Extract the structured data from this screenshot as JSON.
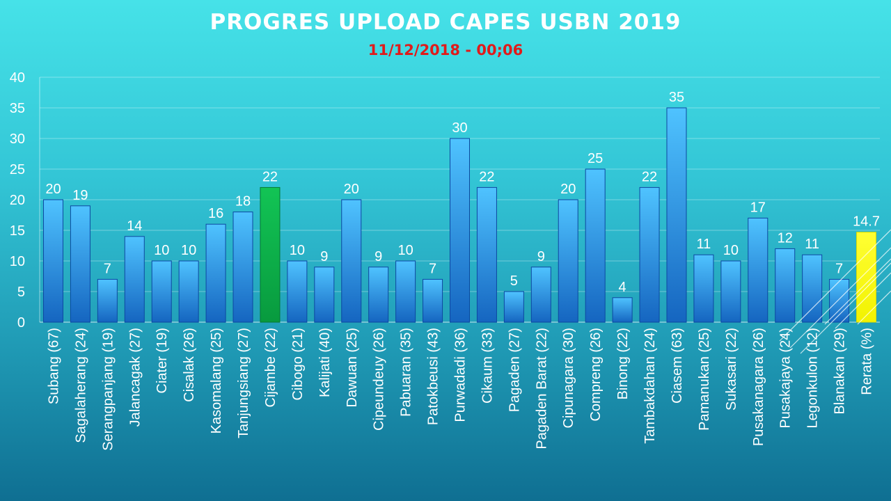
{
  "title": "PROGRES UPLOAD CAPES USBN 2019",
  "subtitle": "11/12/2018 - 00;06",
  "colors": {
    "default_bar": "#2b8fe6",
    "highlight_bar": "#0db14b",
    "average_bar": "#ffff00",
    "text": "#ffffff",
    "subtitle": "#e01b1b"
  },
  "chart_data": {
    "type": "bar",
    "title": "PROGRES UPLOAD CAPES USBN 2019",
    "subtitle": "11/12/2018 - 00;06",
    "categories": [
      "Subang (67)",
      "Sagalaherang (24)",
      "Serangpanjang (19)",
      "Jalancagak (27)",
      "Ciater (19)",
      "Cisalak (26)",
      "Kasomalang (25)",
      "Tanjungsiang (27)",
      "Cijambe (22)",
      "Cibogo (21)",
      "Kalijati (40)",
      "Dawuan (25)",
      "Cipeundeuy (26)",
      "Pabuaran (35)",
      "Patokbeusi (43)",
      "Purwadadi (36)",
      "Cikaum (33)",
      "Pagaden (27)",
      "Pagaden Barat (22)",
      "Cipunagara (30)",
      "Compreng (26)",
      "Binong (22)",
      "Tambakdahan (24)",
      "Ciasem (63)",
      "Pamanukan (25)",
      "Sukasari (22)",
      "Pusakanagara (26)",
      "Pusakajaya (24)",
      "Legonkulon (12)",
      "Blanakan (29)",
      "Rerata (%)"
    ],
    "values": [
      20,
      19,
      7,
      14,
      10,
      10,
      16,
      18,
      22,
      10,
      9,
      20,
      9,
      10,
      7,
      30,
      22,
      5,
      9,
      20,
      25,
      4,
      22,
      35,
      11,
      10,
      17,
      12,
      11,
      7,
      14.7
    ],
    "data_labels": [
      "20",
      "19",
      "7",
      "14",
      "10",
      "10",
      "16",
      "18",
      "22",
      "10",
      "9",
      "20",
      "9",
      "10",
      "7",
      "30",
      "22",
      "5",
      "9",
      "20",
      "25",
      "4",
      "22",
      "35",
      "11",
      "10",
      "17",
      "12",
      "11",
      "7",
      "14.7"
    ],
    "highlight": {
      "Cijambe (22)": "green",
      "Rerata (%)": "yellow"
    },
    "yticks": [
      "0",
      "5",
      "10",
      "15",
      "20",
      "25",
      "30",
      "35",
      "40"
    ],
    "ylim": [
      0,
      40
    ],
    "xlabel": "",
    "ylabel": "",
    "grid": true,
    "legend": "none"
  }
}
